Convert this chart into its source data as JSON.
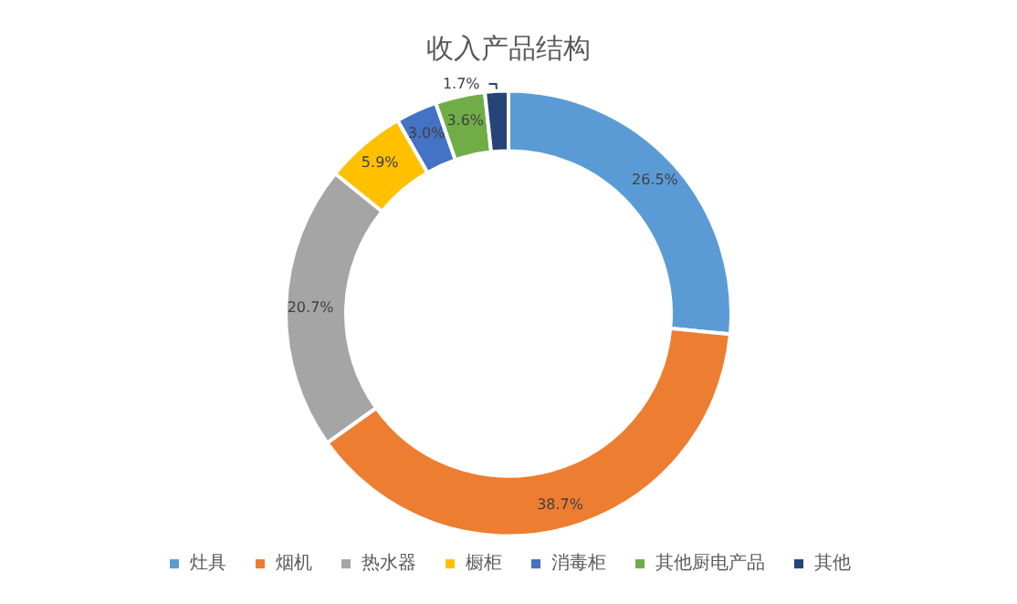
{
  "chart_data": {
    "type": "donut",
    "title": "收入产品结构",
    "categories": [
      "灶具",
      "烟机",
      "热水器",
      "橱柜",
      "消毒柜",
      "其他厨电产品",
      "其他"
    ],
    "values": [
      26.5,
      38.7,
      20.7,
      5.9,
      3.0,
      3.6,
      1.7
    ],
    "value_labels": [
      "26.5%",
      "38.7%",
      "20.7%",
      "5.9%",
      "3.0%",
      "3.6%",
      "1.7%"
    ],
    "colors": [
      "#5b9bd5",
      "#ed7d31",
      "#a5a5a5",
      "#ffc000",
      "#4472c4",
      "#70ad47",
      "#264478"
    ],
    "legend": "bottom"
  }
}
